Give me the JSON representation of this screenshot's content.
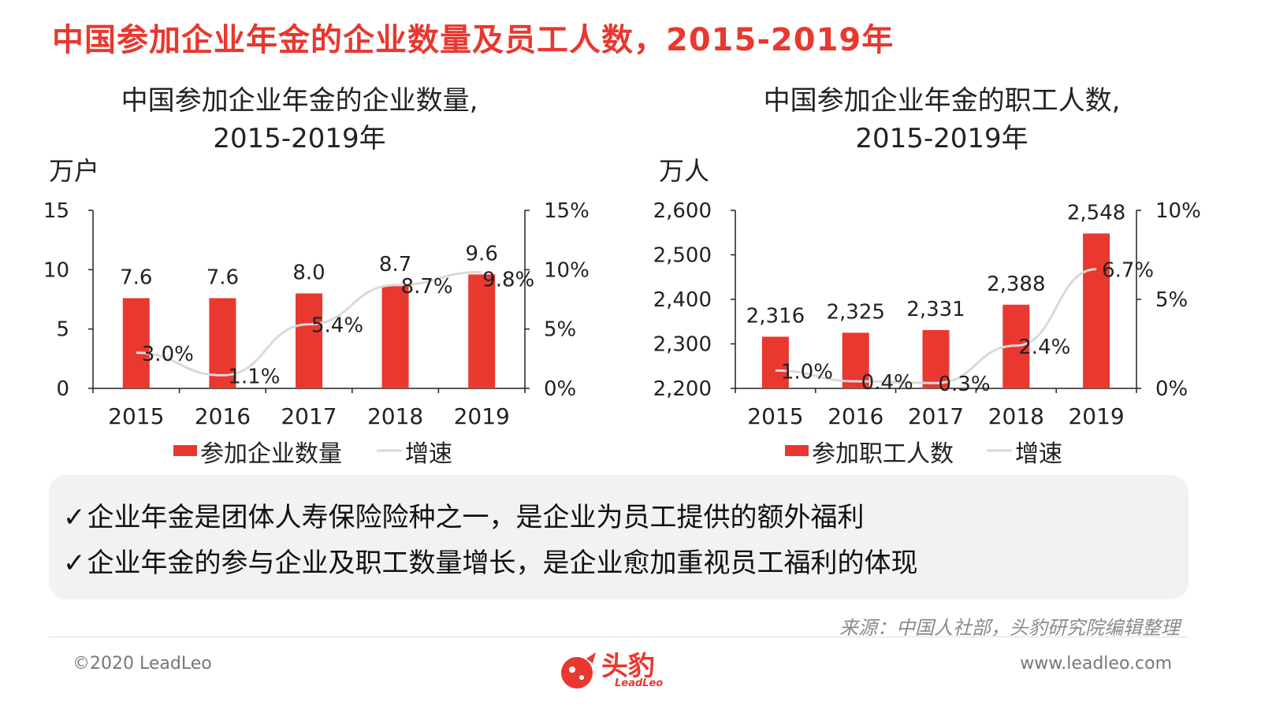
{
  "page": {
    "title": "中国参加企业年金的企业数量及员工人数，2015-2019年"
  },
  "chart_data": [
    {
      "type": "bar",
      "title": "中国参加企业年金的企业数量,\n2015-2019年",
      "ylabel": "万户",
      "categories": [
        "2015",
        "2016",
        "2017",
        "2018",
        "2019"
      ],
      "ylim": [
        0,
        15
      ],
      "yticks": [
        "0",
        "5",
        "10",
        "15"
      ],
      "y2lim": [
        0,
        15
      ],
      "y2ticks": [
        "0%",
        "5%",
        "10%",
        "15%"
      ],
      "series": [
        {
          "name": "参加企业数量",
          "kind": "bar",
          "axis": "left",
          "color": "#e8382f",
          "values": [
            7.6,
            7.6,
            8.0,
            8.7,
            9.6
          ],
          "labels": [
            "7.6",
            "7.6",
            "8.0",
            "8.7",
            "9.6"
          ]
        },
        {
          "name": "增速",
          "kind": "line",
          "axis": "right",
          "color": "#d9d9d9",
          "values": [
            3.0,
            1.1,
            5.4,
            8.7,
            9.8
          ],
          "labels": [
            "3.0%",
            "1.1%",
            "5.4%",
            "8.7%",
            "9.8%"
          ]
        }
      ],
      "legend": "bottom"
    },
    {
      "type": "bar",
      "title": "中国参加企业年金的职工人数,\n2015-2019年",
      "ylabel": "万人",
      "categories": [
        "2015",
        "2016",
        "2017",
        "2018",
        "2019"
      ],
      "ylim": [
        2200,
        2600
      ],
      "yticks": [
        "2,200",
        "2,300",
        "2,400",
        "2,500",
        "2,600"
      ],
      "y2lim": [
        0,
        10
      ],
      "y2ticks": [
        "0%",
        "5%",
        "10%"
      ],
      "series": [
        {
          "name": "参加职工人数",
          "kind": "bar",
          "axis": "left",
          "color": "#e8382f",
          "values": [
            2316,
            2325,
            2331,
            2388,
            2548
          ],
          "labels": [
            "2,316",
            "2,325",
            "2,331",
            "2,388",
            "2,548"
          ]
        },
        {
          "name": "增速",
          "kind": "line",
          "axis": "right",
          "color": "#d9d9d9",
          "values": [
            1.0,
            0.4,
            0.3,
            2.4,
            6.7
          ],
          "labels": [
            "1.0%",
            "0.4%",
            "0.3%",
            "2.4%",
            "6.7%"
          ]
        }
      ],
      "legend": "bottom"
    }
  ],
  "bullets": [
    {
      "check": "✓",
      "text": "企业年金是团体人寿保险险种之一，是企业为员工提供的额外福利"
    },
    {
      "check": "✓",
      "text": "企业年金的参与企业及职工数量增长，是企业愈加重视员工福利的体现"
    }
  ],
  "footer": {
    "source": "来源：中国人社部，头豹研究院编辑整理",
    "copyright": "©2020 LeadLeo",
    "website": "www.leadleo.com",
    "logo_text": "头豹",
    "logo_sub": "LeadLeo",
    "brand_color": "#e8382f"
  }
}
